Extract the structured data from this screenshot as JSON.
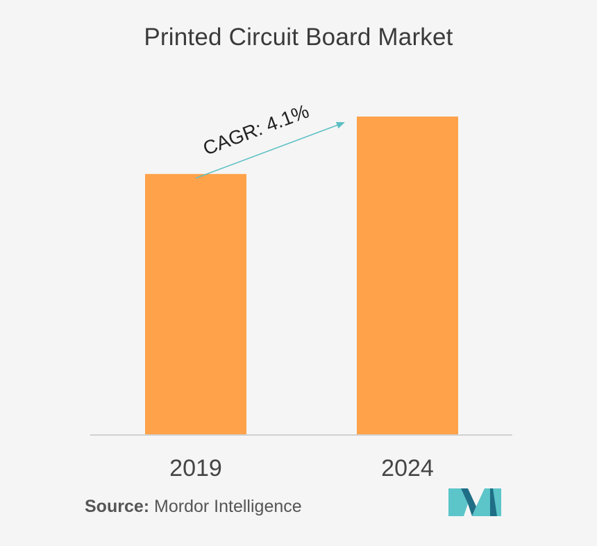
{
  "chart_data": {
    "type": "bar",
    "title": "Printed Circuit Board Market",
    "categories": [
      "2019",
      "2024"
    ],
    "values": [
      1.0,
      1.22
    ],
    "xlabel": "",
    "ylabel": "",
    "ylim": [
      0,
      1.22
    ],
    "grid": false,
    "legend": "none",
    "bar_color": "#ffa24a",
    "arrow_color": "#5bbfc3",
    "annotation": "CAGR: 4.1%"
  },
  "source": {
    "label": "Source:",
    "text": "Mordor Intelligence"
  },
  "logo": {
    "icon": "mordor-intelligence-logo",
    "colors": [
      "#5bc5c9",
      "#1f6e86"
    ]
  }
}
